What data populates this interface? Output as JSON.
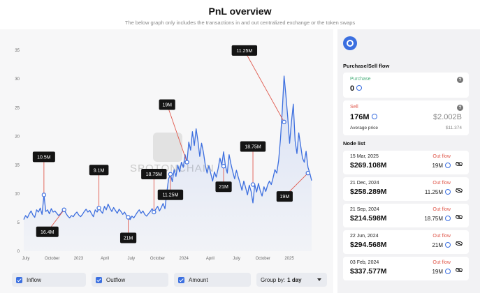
{
  "header": {
    "title": "PnL overview",
    "subtitle": "The below graph only includes the transactions in and out centralized exchange or the token swaps"
  },
  "watermark": "SPOTONCHAIN",
  "colors": {
    "accent": "#3b6fe0",
    "line": "#3d6fdf",
    "sell": "#e05a4e",
    "buy": "#4caf7d",
    "annotation_bg": "#141414"
  },
  "chart_data": {
    "type": "line",
    "title": "",
    "xlabel": "",
    "ylabel": "",
    "x_ticks": [
      "July",
      "October",
      "2023",
      "April",
      "July",
      "October",
      "2024",
      "April",
      "July",
      "October",
      "2025"
    ],
    "y_ticks": [
      "0",
      "5",
      "10",
      "15",
      "20",
      "25",
      "30",
      "35"
    ],
    "ylim": [
      0,
      35
    ],
    "grid": false,
    "series": [
      {
        "values": [
          5.5,
          6.2,
          5.8,
          6.5,
          7.0,
          6.3,
          5.9,
          7.2,
          6.8,
          7.5,
          6.4,
          9.8,
          6.9,
          7.2,
          6.5,
          7.4,
          6.8,
          7.0,
          6.6,
          6.2,
          6.5,
          6.9,
          7.2,
          6.6,
          6.1,
          5.8,
          6.2,
          6.0,
          6.5,
          6.8,
          6.3,
          6.0,
          6.4,
          6.9,
          7.3,
          6.8,
          7.1,
          6.5,
          6.0,
          7.2,
          6.8,
          7.5,
          7.0,
          6.6,
          7.8,
          7.2,
          8.2,
          7.5,
          6.9,
          7.6,
          7.1,
          6.6,
          7.3,
          6.9,
          6.4,
          6.8,
          6.2,
          5.9,
          5.5,
          6.1,
          5.8,
          6.3,
          6.8,
          7.2,
          6.6,
          7.0,
          6.4,
          6.1,
          6.5,
          6.9,
          7.4,
          6.8,
          7.3,
          7.8,
          7.0,
          7.6,
          8.3,
          7.4,
          10.2,
          12.6,
          13.4,
          12.1,
          14.2,
          13.0,
          15.0,
          13.8,
          15.5,
          14.6,
          16.8,
          15.5,
          19.0,
          17.6,
          20.8,
          18.4,
          21.3,
          19.2,
          16.5,
          18.8,
          17.2,
          15.0,
          13.6,
          14.9,
          13.5,
          12.2,
          13.8,
          12.9,
          14.4,
          16.2,
          15.0,
          17.3,
          14.8,
          13.6,
          16.8,
          15.2,
          13.8,
          12.6,
          14.1,
          12.9,
          11.8,
          10.6,
          12.2,
          11.1,
          9.8,
          11.5,
          10.4,
          8.4,
          11.6,
          10.3,
          11.8,
          10.5,
          9.6,
          11.2,
          10.4,
          11.5,
          12.2,
          11.6,
          12.8,
          14.2,
          13.6,
          15.8,
          19.5,
          24.5,
          30.5,
          27.0,
          23.2,
          18.8,
          22.5,
          25.6,
          19.2,
          17.0,
          20.6,
          18.4,
          16.2,
          15.5,
          17.4,
          14.6,
          13.6,
          12.3
        ]
      }
    ],
    "annotations": [
      {
        "label": "10.5M",
        "x_index": 11,
        "value": 9.8
      },
      {
        "label": "16.4M",
        "x_index": 22,
        "value": 7.2
      },
      {
        "label": "9.1M",
        "x_index": 41,
        "value": 7.5
      },
      {
        "label": "21M",
        "x_index": 57,
        "value": 5.9
      },
      {
        "label": "18.75M",
        "x_index": 71,
        "value": 6.8
      },
      {
        "label": "11.25M",
        "x_index": 80,
        "value": 13.4
      },
      {
        "label": "19M",
        "x_index": 89,
        "value": 15.5
      },
      {
        "label": "21M",
        "x_index": 109,
        "value": 14.8
      },
      {
        "label": "18.75M",
        "x_index": 125,
        "value": 11.6
      },
      {
        "label": "11.25M",
        "x_index": 142,
        "value": 22.5
      },
      {
        "label": "19M",
        "x_index": 155,
        "value": 13.6
      }
    ]
  },
  "controls": {
    "inflow": "Inflow",
    "outflow": "Outflow",
    "amount": "Amount",
    "group_by_label": "Group by:",
    "group_by_value": "1 day"
  },
  "sidebar": {
    "purchase_sell_title": "Purchase/Sell flow",
    "purchase_label": "Purchase",
    "purchase_value": "0",
    "sell_label": "Sell",
    "sell_value": "176M",
    "sell_usd": "$2.002B",
    "avg_price_label": "Average price",
    "avg_price_value": "$11.374",
    "node_list_title": "Node list",
    "help": "?",
    "nodes": [
      {
        "date": "15 Mar, 2025",
        "value": "$269.108M",
        "flow": "Out flow",
        "amount": "19M"
      },
      {
        "date": "21 Dec, 2024",
        "value": "$258.289M",
        "flow": "Out flow",
        "amount": "11.25M"
      },
      {
        "date": "21 Sep, 2024",
        "value": "$214.598M",
        "flow": "Out flow",
        "amount": "18.75M"
      },
      {
        "date": "22 Jun, 2024",
        "value": "$294.568M",
        "flow": "Out flow",
        "amount": "21M"
      },
      {
        "date": "03 Feb, 2024",
        "value": "$337.577M",
        "flow": "Out flow",
        "amount": "19M"
      }
    ]
  }
}
